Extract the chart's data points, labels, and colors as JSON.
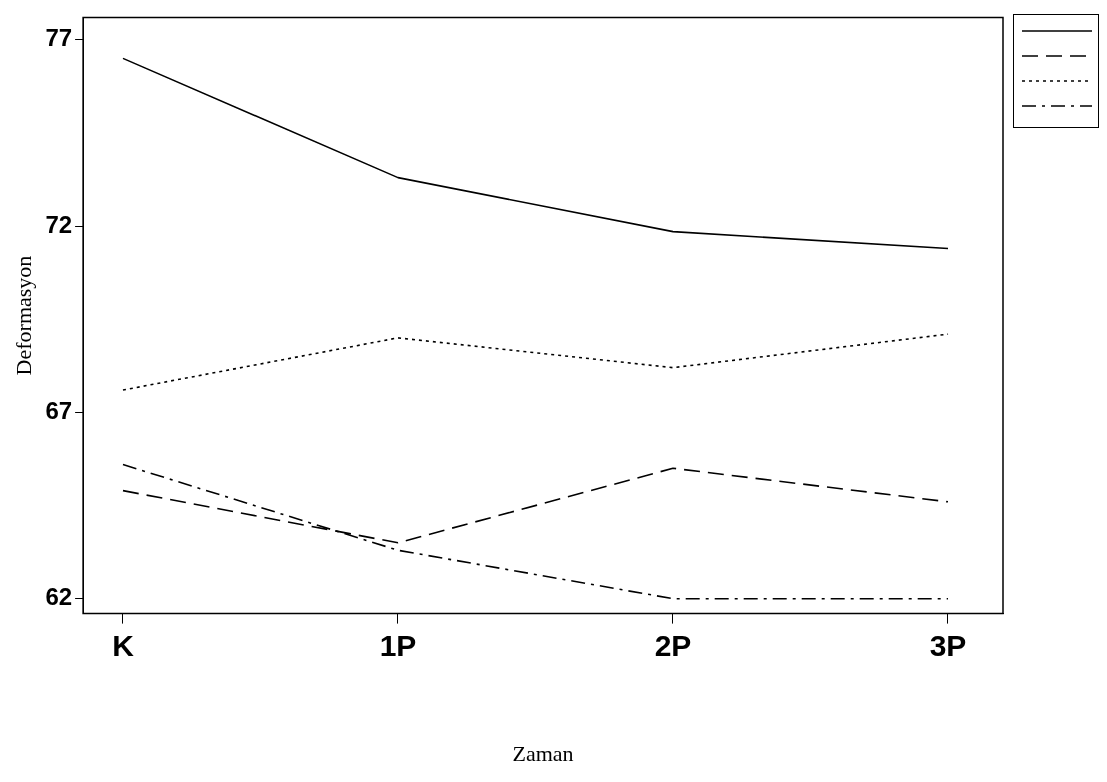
{
  "chart_data": {
    "type": "line",
    "xlabel": "Zaman",
    "ylabel": "Deformasyon",
    "categories": [
      "K",
      "1P",
      "2P",
      "3P"
    ],
    "series": [
      {
        "color": "#000000",
        "line_style": "solid",
        "values": [
          76.5,
          73.3,
          71.85,
          71.4
        ]
      },
      {
        "color": "#000000",
        "line_style": "dashed",
        "values": [
          64.9,
          63.5,
          65.5,
          64.6
        ]
      },
      {
        "color": "#000000",
        "line_style": "dotted",
        "values": [
          67.6,
          69.0,
          68.2,
          69.1
        ]
      },
      {
        "color": "#000000",
        "line_style": "dashdot",
        "values": [
          65.6,
          63.3,
          62.0,
          62.0
        ]
      }
    ],
    "ylim": [
      61.6,
      77.6
    ],
    "yticks": [
      62,
      67,
      72,
      77
    ],
    "grid": false,
    "marker": "none"
  }
}
